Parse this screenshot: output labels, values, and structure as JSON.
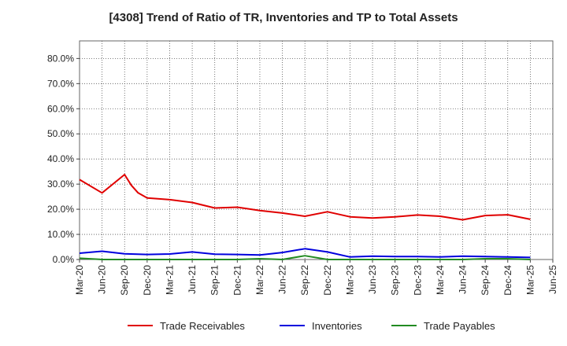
{
  "chart_data": {
    "type": "line",
    "title": "[4308]  Trend of Ratio of TR, Inventories and TP to Total Assets",
    "x_tick_labels": [
      "Mar-20",
      "Jun-20",
      "Sep-20",
      "Dec-20",
      "Mar-21",
      "Jun-21",
      "Sep-21",
      "Dec-21",
      "Mar-22",
      "Jun-22",
      "Sep-22",
      "Dec-22",
      "Mar-23",
      "Jun-23",
      "Sep-23",
      "Dec-23",
      "Mar-24",
      "Jun-24",
      "Sep-24",
      "Dec-24",
      "Mar-25",
      "Jun-25"
    ],
    "y_tick_labels": [
      "0.0%",
      "10.0%",
      "20.0%",
      "30.0%",
      "40.0%",
      "50.0%",
      "60.0%",
      "70.0%",
      "80.0%"
    ],
    "y_ticks": [
      0,
      10,
      20,
      30,
      40,
      50,
      60,
      70,
      80
    ],
    "ylim": [
      0,
      87
    ],
    "x_count": 22,
    "grid": true,
    "legend_position": "bottom",
    "series": [
      {
        "name": "Trade Receivables",
        "color": "#e00000",
        "points": [
          [
            0,
            31.8
          ],
          [
            1,
            26.5
          ],
          [
            2,
            33.8
          ],
          [
            2.3,
            29.5
          ],
          [
            2.6,
            26.5
          ],
          [
            3,
            24.5
          ],
          [
            4,
            23.8
          ],
          [
            5,
            22.7
          ],
          [
            6,
            20.5
          ],
          [
            7,
            20.8
          ],
          [
            8,
            19.5
          ],
          [
            9,
            18.5
          ],
          [
            10,
            17.2
          ],
          [
            11,
            19.0
          ],
          [
            12,
            17.0
          ],
          [
            13,
            16.5
          ],
          [
            14,
            17.0
          ],
          [
            15,
            17.7
          ],
          [
            16,
            17.2
          ],
          [
            17,
            15.8
          ],
          [
            18,
            17.5
          ],
          [
            19,
            17.8
          ],
          [
            20,
            16.0
          ]
        ]
      },
      {
        "name": "Inventories",
        "color": "#0000dd",
        "points": [
          [
            0,
            2.5
          ],
          [
            1,
            3.3
          ],
          [
            2,
            2.3
          ],
          [
            3,
            2.0
          ],
          [
            4,
            2.2
          ],
          [
            5,
            3.0
          ],
          [
            6,
            2.1
          ],
          [
            7,
            2.0
          ],
          [
            8,
            1.8
          ],
          [
            9,
            2.8
          ],
          [
            10,
            4.3
          ],
          [
            11,
            3.0
          ],
          [
            12,
            1.0
          ],
          [
            13,
            1.3
          ],
          [
            14,
            1.2
          ],
          [
            15,
            1.2
          ],
          [
            16,
            1.0
          ],
          [
            17,
            1.3
          ],
          [
            18,
            1.2
          ],
          [
            19,
            1.0
          ],
          [
            20,
            0.8
          ]
        ]
      },
      {
        "name": "Trade Payables",
        "color": "#228b22",
        "points": [
          [
            0,
            0.5
          ],
          [
            1,
            0.0
          ],
          [
            2,
            0.0
          ],
          [
            3,
            0.0
          ],
          [
            4,
            0.0
          ],
          [
            5,
            0.0
          ],
          [
            6,
            0.0
          ],
          [
            7,
            0.0
          ],
          [
            8,
            0.3
          ],
          [
            9,
            0.0
          ],
          [
            10,
            1.5
          ],
          [
            11,
            0.0
          ],
          [
            12,
            0.0
          ],
          [
            13,
            0.0
          ],
          [
            14,
            0.0
          ],
          [
            15,
            0.0
          ],
          [
            16,
            0.0
          ],
          [
            17,
            0.0
          ],
          [
            18,
            0.3
          ],
          [
            19,
            0.3
          ],
          [
            20,
            0.0
          ]
        ]
      }
    ]
  }
}
